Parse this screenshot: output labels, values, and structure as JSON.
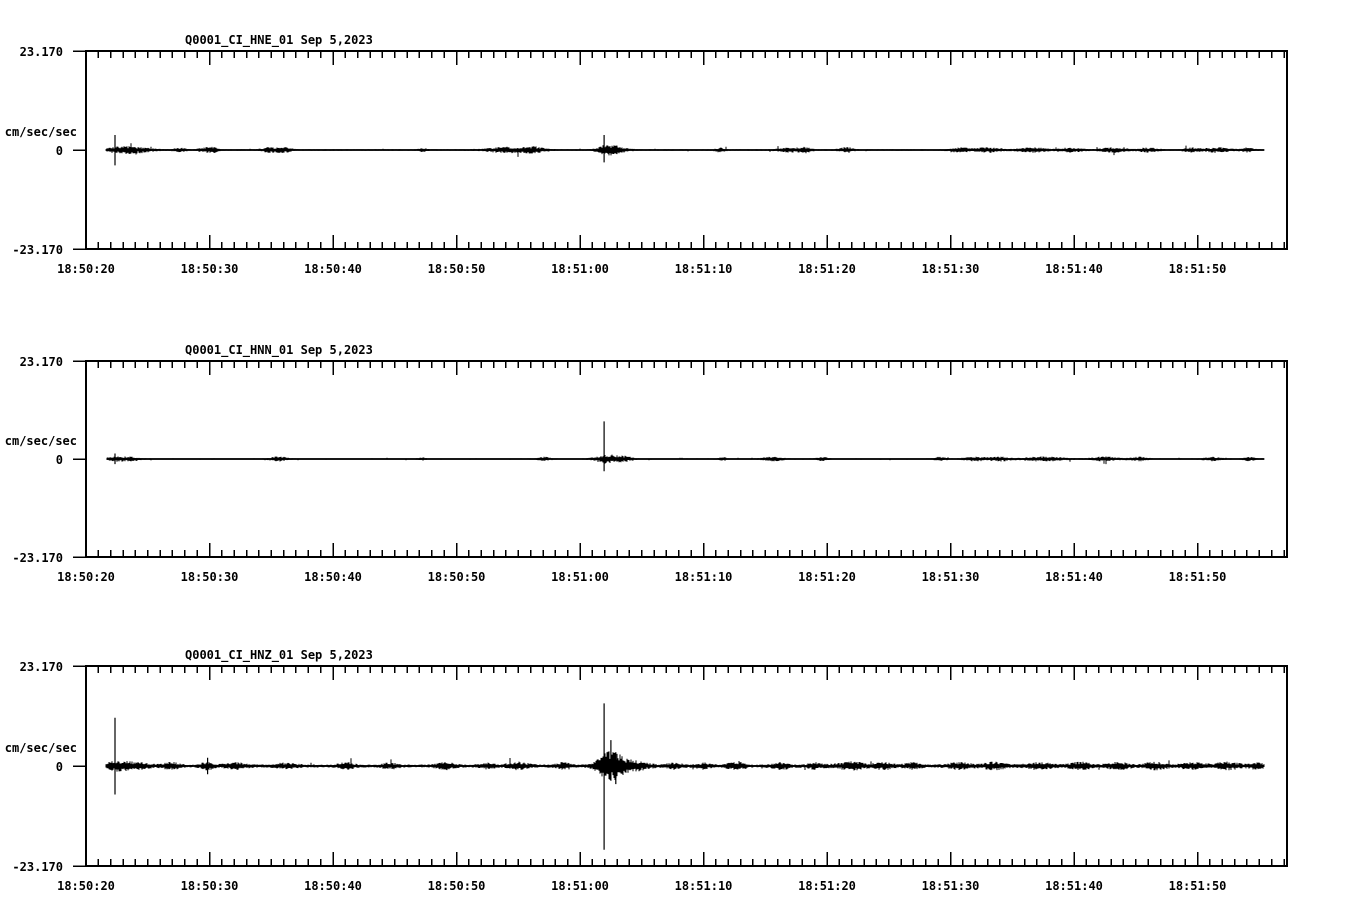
{
  "page": {
    "background_color": "#ffffff",
    "ink_color": "#000000"
  },
  "chart_data": {
    "type": "line",
    "kind": "seismogram-three-panel",
    "date_label": "Sep 5,2023",
    "units_label": "cm/sec/sec",
    "ylim": [
      -23.17,
      23.17
    ],
    "y_tick_labels": [
      "23.170",
      "0",
      "-23.170"
    ],
    "x_axis": {
      "start_time": "18:50:20",
      "end_time": "18:51:57",
      "major_interval_sec": 10,
      "minor_interval_sec": 1,
      "grid": false
    },
    "x_major_tick_labels": [
      "18:50:20",
      "18:50:30",
      "18:50:40",
      "18:50:50",
      "18:51:00",
      "18:51:10",
      "18:51:20",
      "18:51:30",
      "18:51:40",
      "18:51:50"
    ],
    "panels": [
      {
        "station_label": "Q0001_CI_HNE_01",
        "title": "Q0001_CI_HNE_01  Sep 5,2023",
        "channel": "HNE",
        "seed": 7,
        "noise_amp": 0.16,
        "data_start_sec": 1.6,
        "data_end_sec": 95.4,
        "spikes": [
          {
            "t": 2.35,
            "up": 3.5,
            "down": 3.6
          },
          {
            "t": 41.95,
            "up": 3.5,
            "down": 2.9
          }
        ],
        "bursts": [
          {
            "t": 2.9,
            "w": 2.2,
            "a": 0.55
          },
          {
            "t": 4.5,
            "w": 2.0,
            "a": 0.3
          },
          {
            "t": 7.6,
            "w": 0.8,
            "a": 0.3
          },
          {
            "t": 9.7,
            "w": 1.0,
            "a": 0.4
          },
          {
            "t": 10.4,
            "w": 0.6,
            "a": 0.35
          },
          {
            "t": 14.9,
            "w": 1.2,
            "a": 0.45
          },
          {
            "t": 16.1,
            "w": 1.0,
            "a": 0.4
          },
          {
            "t": 27.3,
            "w": 0.6,
            "a": 0.3
          },
          {
            "t": 33.9,
            "w": 2.6,
            "a": 0.5
          },
          {
            "t": 36.3,
            "w": 1.6,
            "a": 0.5
          },
          {
            "t": 42.15,
            "w": 1.2,
            "a": 0.9
          },
          {
            "t": 43.1,
            "w": 1.4,
            "a": 0.45
          },
          {
            "t": 51.4,
            "w": 0.7,
            "a": 0.35
          },
          {
            "t": 57.0,
            "w": 1.6,
            "a": 0.4
          },
          {
            "t": 58.3,
            "w": 0.8,
            "a": 0.4
          },
          {
            "t": 61.6,
            "w": 1.0,
            "a": 0.45
          },
          {
            "t": 70.8,
            "w": 1.6,
            "a": 0.35
          },
          {
            "t": 73.0,
            "w": 1.8,
            "a": 0.4
          },
          {
            "t": 76.6,
            "w": 2.0,
            "a": 0.4
          },
          {
            "t": 79.8,
            "w": 1.6,
            "a": 0.38
          },
          {
            "t": 83.2,
            "w": 1.8,
            "a": 0.4
          },
          {
            "t": 86.0,
            "w": 1.4,
            "a": 0.35
          },
          {
            "t": 89.6,
            "w": 1.2,
            "a": 0.4
          },
          {
            "t": 91.6,
            "w": 1.6,
            "a": 0.42
          },
          {
            "t": 94.0,
            "w": 1.0,
            "a": 0.35
          }
        ]
      },
      {
        "station_label": "Q0001_CI_HNN_01",
        "title": "Q0001_CI_HNN_01  Sep 5,2023",
        "channel": "HNN",
        "seed": 13,
        "noise_amp": 0.13,
        "data_start_sec": 1.7,
        "data_end_sec": 95.4,
        "spikes": [
          {
            "t": 2.35,
            "up": 1.3,
            "down": 1.2
          },
          {
            "t": 41.95,
            "up": 8.9,
            "down": 2.9
          }
        ],
        "bursts": [
          {
            "t": 2.5,
            "w": 1.4,
            "a": 0.45
          },
          {
            "t": 3.8,
            "w": 1.0,
            "a": 0.3
          },
          {
            "t": 15.6,
            "w": 1.2,
            "a": 0.4
          },
          {
            "t": 27.2,
            "w": 0.5,
            "a": 0.22
          },
          {
            "t": 37.1,
            "w": 0.9,
            "a": 0.32
          },
          {
            "t": 42.2,
            "w": 1.6,
            "a": 0.8
          },
          {
            "t": 43.6,
            "w": 1.2,
            "a": 0.4
          },
          {
            "t": 51.6,
            "w": 0.6,
            "a": 0.28
          },
          {
            "t": 55.6,
            "w": 1.4,
            "a": 0.35
          },
          {
            "t": 59.6,
            "w": 0.8,
            "a": 0.3
          },
          {
            "t": 69.2,
            "w": 0.8,
            "a": 0.3
          },
          {
            "t": 72.0,
            "w": 1.6,
            "a": 0.35
          },
          {
            "t": 74.0,
            "w": 1.4,
            "a": 0.35
          },
          {
            "t": 77.5,
            "w": 3.0,
            "a": 0.38
          },
          {
            "t": 82.5,
            "w": 2.0,
            "a": 0.38
          },
          {
            "t": 85.3,
            "w": 1.2,
            "a": 0.35
          },
          {
            "t": 91.2,
            "w": 1.2,
            "a": 0.35
          },
          {
            "t": 94.2,
            "w": 0.8,
            "a": 0.3
          }
        ]
      },
      {
        "station_label": "Q0001_CI_HNZ_01",
        "title": "Q0001_CI_HNZ_01  Sep 5,2023",
        "channel": "HNZ",
        "seed": 29,
        "noise_amp": 0.3,
        "data_start_sec": 1.6,
        "data_end_sec": 95.4,
        "spikes": [
          {
            "t": 2.35,
            "up": 11.2,
            "down": 6.6
          },
          {
            "t": 9.85,
            "up": 1.9,
            "down": 1.9
          },
          {
            "t": 41.95,
            "up": 14.5,
            "down": 19.4
          },
          {
            "t": 42.5,
            "up": 6.0,
            "down": 3.4
          },
          {
            "t": 42.9,
            "up": 3.2,
            "down": 4.2
          }
        ],
        "bursts": [
          {
            "t": 2.6,
            "w": 1.6,
            "a": 0.85
          },
          {
            "t": 4.3,
            "w": 1.6,
            "a": 0.5
          },
          {
            "t": 6.9,
            "w": 1.2,
            "a": 0.5
          },
          {
            "t": 9.85,
            "w": 0.9,
            "a": 0.6
          },
          {
            "t": 12.2,
            "w": 1.6,
            "a": 0.45
          },
          {
            "t": 16.2,
            "w": 1.6,
            "a": 0.4
          },
          {
            "t": 21.1,
            "w": 1.1,
            "a": 0.5
          },
          {
            "t": 24.6,
            "w": 1.1,
            "a": 0.42
          },
          {
            "t": 29.1,
            "w": 1.3,
            "a": 0.5
          },
          {
            "t": 32.5,
            "w": 1.0,
            "a": 0.42
          },
          {
            "t": 35.0,
            "w": 1.6,
            "a": 0.55
          },
          {
            "t": 38.6,
            "w": 1.1,
            "a": 0.45
          },
          {
            "t": 42.3,
            "w": 1.6,
            "a": 2.1
          },
          {
            "t": 43.3,
            "w": 1.6,
            "a": 1.0
          },
          {
            "t": 44.8,
            "w": 1.6,
            "a": 0.6
          },
          {
            "t": 47.6,
            "w": 1.1,
            "a": 0.5
          },
          {
            "t": 50.0,
            "w": 1.0,
            "a": 0.42
          },
          {
            "t": 52.7,
            "w": 1.3,
            "a": 0.55
          },
          {
            "t": 56.3,
            "w": 1.3,
            "a": 0.5
          },
          {
            "t": 59.0,
            "w": 1.0,
            "a": 0.45
          },
          {
            "t": 62.0,
            "w": 2.2,
            "a": 0.6
          },
          {
            "t": 64.6,
            "w": 1.3,
            "a": 0.5
          },
          {
            "t": 67.0,
            "w": 1.2,
            "a": 0.45
          },
          {
            "t": 70.7,
            "w": 1.6,
            "a": 0.55
          },
          {
            "t": 73.5,
            "w": 1.6,
            "a": 0.55
          },
          {
            "t": 77.1,
            "w": 1.9,
            "a": 0.55
          },
          {
            "t": 80.5,
            "w": 1.6,
            "a": 0.55
          },
          {
            "t": 83.6,
            "w": 1.6,
            "a": 0.52
          },
          {
            "t": 86.6,
            "w": 1.6,
            "a": 0.55
          },
          {
            "t": 89.6,
            "w": 1.6,
            "a": 0.52
          },
          {
            "t": 92.4,
            "w": 1.9,
            "a": 0.55
          },
          {
            "t": 94.8,
            "w": 1.0,
            "a": 0.45
          }
        ]
      }
    ]
  }
}
